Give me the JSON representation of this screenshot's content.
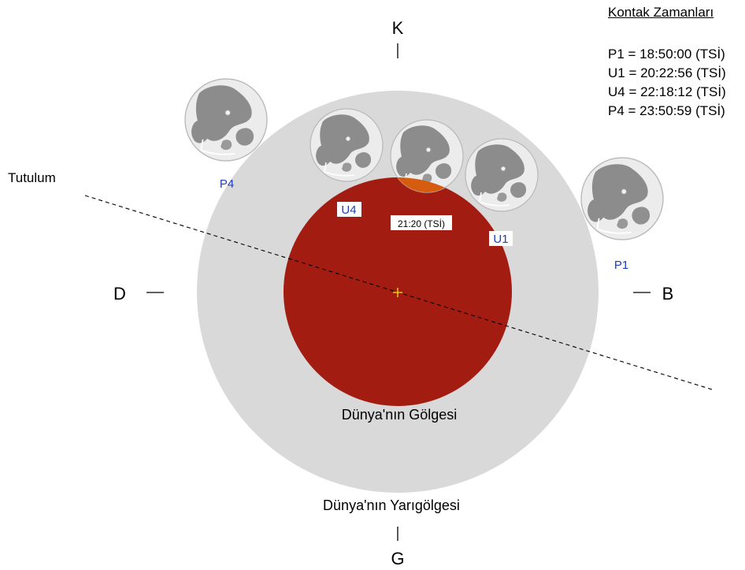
{
  "directions": {
    "north": "K",
    "south": "G",
    "west": "D",
    "east": "B"
  },
  "ecliptic_label": "Tutulum",
  "shadow_label": "Dünya'nın Gölgesi",
  "penumbra_label": "Dünya'nın Yarıgölgesi",
  "moon_labels": {
    "p4": "P4",
    "u4": "U4",
    "u1": "U1",
    "p1": "P1"
  },
  "mid_eclipse_label": "21:20 (TSİ)",
  "contact_times": {
    "title": "Kontak Zamanları",
    "rows": [
      "P1 = 18:50:00 (TSİ)",
      "U1 = 20:22:56 (TSİ)",
      "U4 = 22:18:12 (TSİ)",
      "P4 = 23:50:59 (TSİ)"
    ]
  },
  "colors": {
    "penumbra": "#d9d9d9",
    "umbra": "#a21c12",
    "moon_in_umbra": "#d65d0f",
    "moon_face": "#ececec",
    "maria": "#8c8c8c",
    "label_blue": "#1f3fb5",
    "center_cross": "#f0e020"
  }
}
